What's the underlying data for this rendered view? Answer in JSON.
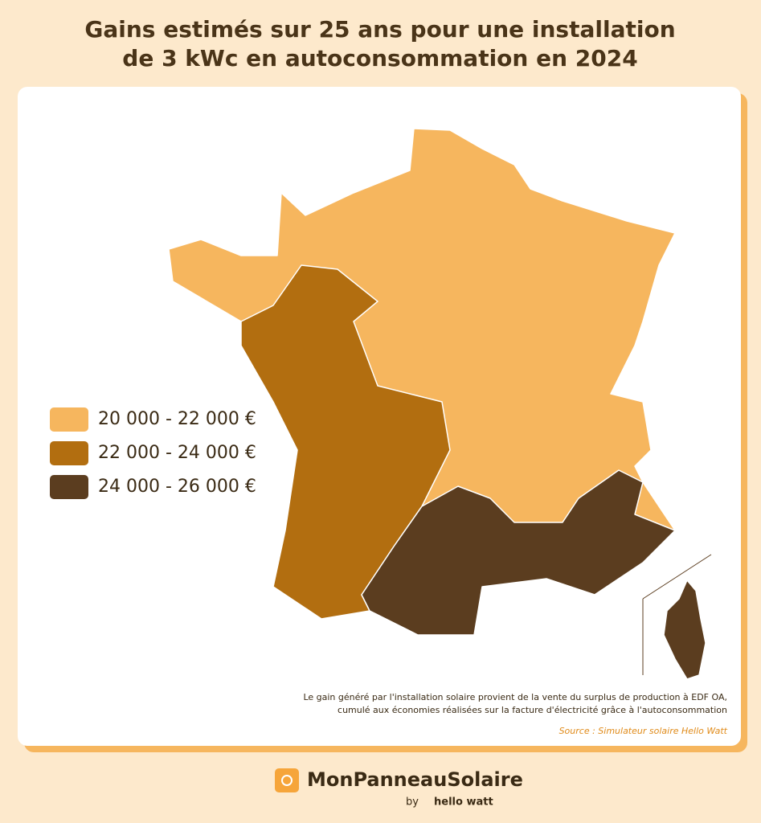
{
  "title": [
    "Gains estimés sur 25 ans pour une installation",
    "de 3 kWc en autoconsommation en 2024"
  ],
  "legend": {
    "items": [
      {
        "label": "20 000 - 22 000 €",
        "color": "#f6b65e"
      },
      {
        "label": "22 000 - 24 000 €",
        "color": "#b26e10"
      },
      {
        "label": "24 000 - 26 000 €",
        "color": "#5b3d1f"
      }
    ]
  },
  "note": [
    "Le gain généré par l'installation solaire provient de la vente du surplus de production à EDF OA,",
    "cumulé aux économies réalisées sur la facture d'électricité grâce à l'autoconsommation"
  ],
  "source": "Source : Simulateur solaire Hello Watt",
  "brand": {
    "name": "MonPanneauSolaire",
    "by": "by",
    "partner": "hello watt"
  }
}
